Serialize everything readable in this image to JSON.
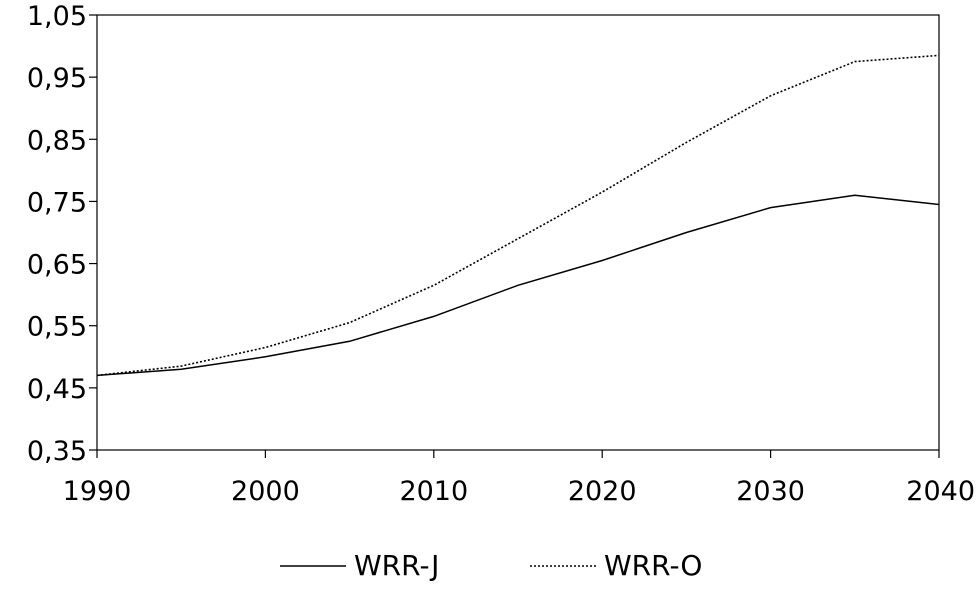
{
  "chart_data": {
    "type": "line",
    "title": "",
    "xlabel": "",
    "ylabel": "",
    "x": [
      1990,
      1995,
      2000,
      2005,
      2010,
      2015,
      2020,
      2025,
      2030,
      2035,
      2040
    ],
    "x_ticks": [
      "1990",
      "2000",
      "2010",
      "2020",
      "2030",
      "2040"
    ],
    "y_ticks": [
      "0,35",
      "0,45",
      "0,55",
      "0,65",
      "0,75",
      "0,85",
      "0,95",
      "1,05"
    ],
    "xlim": [
      1990,
      2040
    ],
    "ylim": [
      0.35,
      1.05
    ],
    "grid": false,
    "legend_position": "bottom",
    "series": [
      {
        "name": "WRR-J",
        "style": "solid",
        "color": "#000000",
        "values": [
          0.47,
          0.48,
          0.5,
          0.525,
          0.565,
          0.615,
          0.655,
          0.7,
          0.74,
          0.76,
          0.745
        ]
      },
      {
        "name": "WRR-O",
        "style": "dotted",
        "color": "#000000",
        "values": [
          0.47,
          0.485,
          0.515,
          0.555,
          0.615,
          0.69,
          0.765,
          0.845,
          0.92,
          0.975,
          0.985
        ]
      }
    ]
  }
}
